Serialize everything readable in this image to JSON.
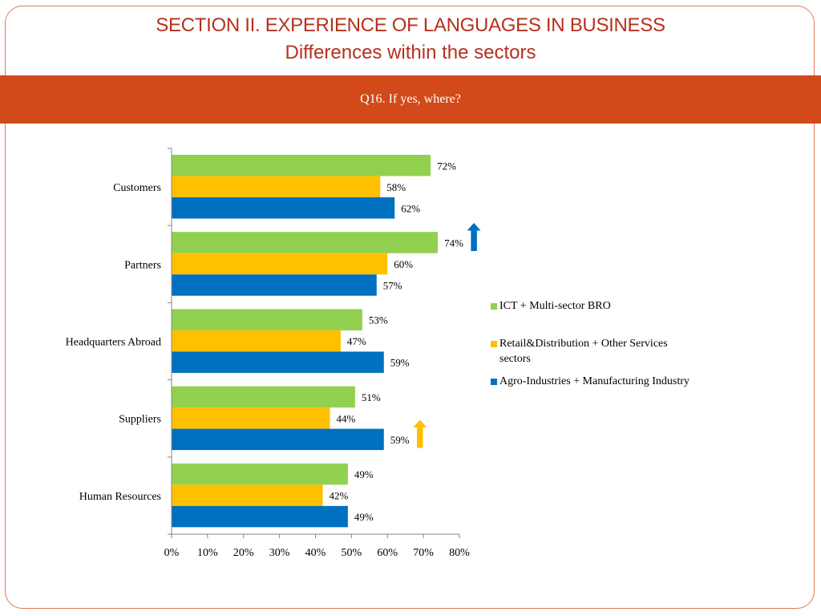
{
  "title": "SECTION II. EXPERIENCE OF LANGUAGES IN BUSINESS",
  "subtitle": "Differences within the sectors",
  "question": "Q16. If yes, where?",
  "colors": {
    "title": "#b7301c",
    "band": "#d24a1a",
    "green": "#92d050",
    "yellow": "#ffc000",
    "blue": "#0070c0"
  },
  "chart_data": {
    "type": "bar",
    "orientation": "horizontal",
    "categories": [
      "Customers",
      "Partners",
      "Headquarters Abroad",
      "Suppliers",
      "Human Resources"
    ],
    "series": [
      {
        "name": "ICT + Multi-sector BRO",
        "color": "#92d050",
        "values": [
          72,
          74,
          53,
          51,
          49
        ]
      },
      {
        "name": "Retail&Distribution + Other Services sectors",
        "color": "#ffc000",
        "values": [
          58,
          60,
          47,
          44,
          42
        ]
      },
      {
        "name": "Agro-Industries + Manufacturing Industry",
        "color": "#0070c0",
        "values": [
          62,
          57,
          59,
          59,
          49
        ]
      }
    ],
    "value_suffix": "%",
    "xlim": [
      0,
      80
    ],
    "xticks": [
      "0%",
      "10%",
      "20%",
      "30%",
      "40%",
      "50%",
      "60%",
      "70%",
      "80%"
    ],
    "grid": false,
    "legend": "right",
    "annotations": [
      {
        "type": "up-arrow",
        "category": "Partners",
        "series": "ICT + Multi-sector BRO",
        "color": "#0070c0"
      },
      {
        "type": "up-arrow",
        "category": "Suppliers",
        "series": "Agro-Industries + Manufacturing Industry",
        "color": "#ffc000"
      }
    ]
  }
}
